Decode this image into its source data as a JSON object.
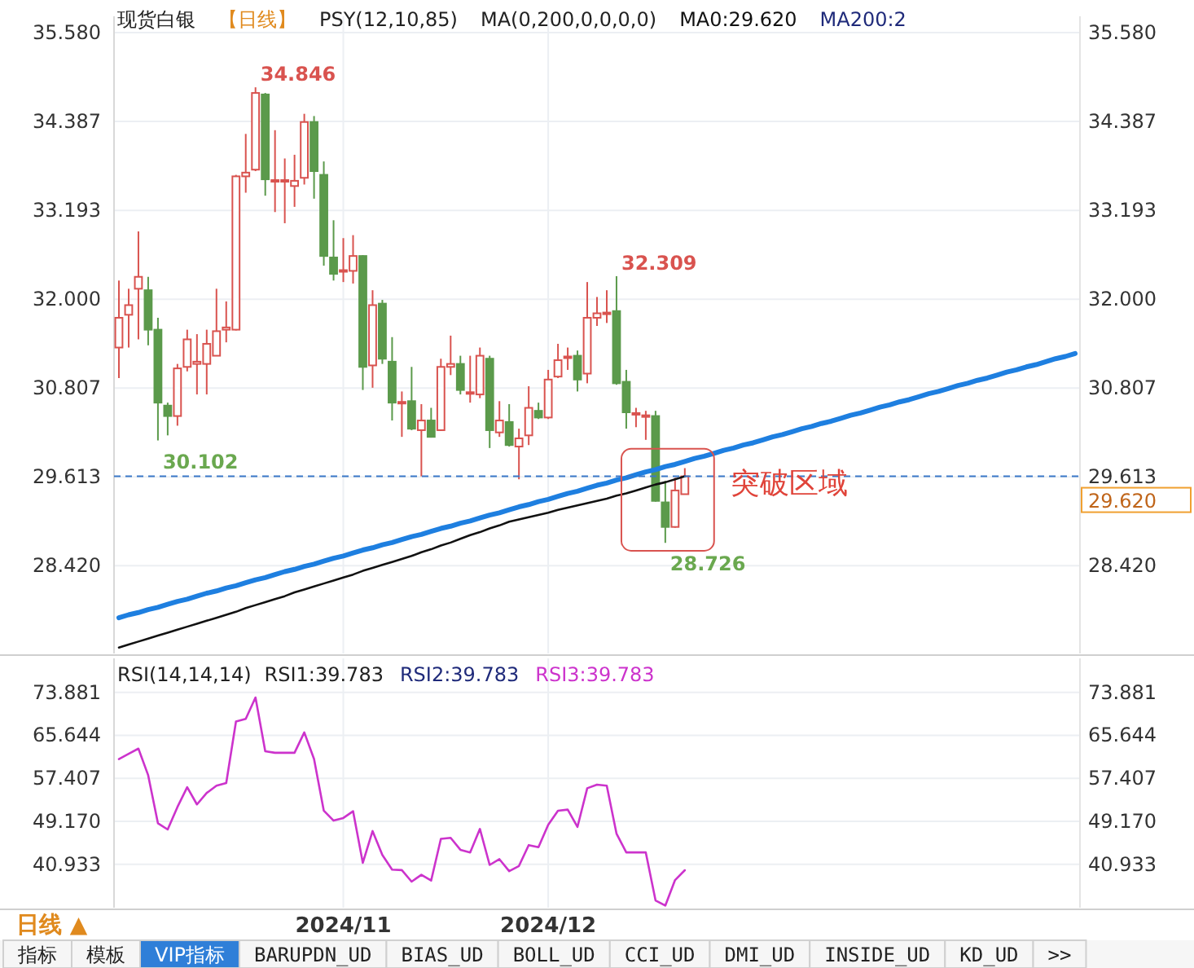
{
  "chart_data": [
    {
      "type": "candlestick",
      "title": "现货白银",
      "subtitle": "【日线】",
      "annotations": [
        "PSY(12,10,85)",
        "MA(0,200,0,0,0,0)",
        "MA200:2",
        "突破区域",
        "34.846",
        "30.102",
        "32.309",
        "28.726"
      ],
      "categories": [
        null,
        null,
        null,
        null,
        null,
        null,
        null,
        null,
        null,
        null,
        null,
        null,
        null,
        null,
        null,
        null,
        null,
        null,
        null,
        null,
        null,
        null,
        null,
        "2024/11",
        null,
        null,
        null,
        null,
        null,
        null,
        null,
        null,
        null,
        null,
        null,
        null,
        null,
        null,
        null,
        null,
        null,
        null,
        null,
        null,
        "2024/12",
        null,
        null,
        null,
        null,
        null,
        null,
        null,
        null,
        null,
        null,
        null,
        null,
        null,
        null,
        null,
        null,
        null,
        null,
        null,
        null,
        null,
        null,
        null,
        null,
        null,
        null,
        null,
        null,
        null,
        null,
        null,
        null,
        null,
        null,
        null,
        null,
        null,
        null,
        null,
        null,
        null,
        null,
        null,
        null,
        null,
        null,
        null,
        null,
        null,
        null,
        null,
        null,
        null,
        null
      ],
      "ohlc": [
        [
          31.35,
          32.25,
          30.94,
          31.75
        ],
        [
          31.79,
          32.14,
          31.35,
          31.92
        ],
        [
          32.14,
          32.91,
          31.46,
          32.3
        ],
        [
          32.12,
          32.3,
          31.38,
          31.59
        ],
        [
          31.59,
          31.75,
          30.102,
          30.61
        ],
        [
          30.57,
          30.61,
          30.17,
          30.43
        ],
        [
          30.43,
          31.13,
          30.3,
          31.07
        ],
        [
          31.09,
          31.59,
          31.03,
          31.46
        ],
        [
          31.13,
          31.53,
          30.72,
          31.16
        ],
        [
          31.13,
          31.59,
          30.72,
          31.4
        ],
        [
          31.24,
          32.14,
          31.24,
          31.57
        ],
        [
          31.59,
          31.97,
          31.42,
          31.62
        ],
        [
          31.59,
          33.67,
          31.58,
          33.65
        ],
        [
          33.65,
          34.22,
          33.43,
          33.7
        ],
        [
          33.74,
          34.846,
          33.72,
          34.77
        ],
        [
          34.75,
          34.77,
          33.39,
          33.61
        ],
        [
          33.59,
          34.27,
          33.17,
          33.6
        ],
        [
          33.59,
          33.89,
          33.02,
          33.6
        ],
        [
          33.52,
          33.94,
          33.24,
          33.59
        ],
        [
          33.63,
          34.49,
          33.54,
          34.38
        ],
        [
          34.38,
          34.46,
          33.35,
          33.72
        ],
        [
          33.67,
          33.85,
          32.45,
          32.58
        ],
        [
          32.56,
          33.06,
          32.25,
          32.34
        ],
        [
          32.38,
          32.82,
          32.23,
          32.39
        ],
        [
          32.38,
          32.86,
          32.21,
          32.58
        ],
        [
          32.58,
          32.59,
          30.78,
          31.09
        ],
        [
          31.11,
          32.12,
          30.81,
          31.92
        ],
        [
          31.94,
          31.99,
          31.13,
          31.2
        ],
        [
          31.16,
          31.49,
          30.37,
          30.61
        ],
        [
          30.61,
          30.76,
          30.15,
          30.62
        ],
        [
          30.63,
          31.09,
          30.24,
          30.26
        ],
        [
          30.24,
          30.59,
          29.62,
          30.37
        ],
        [
          30.37,
          30.54,
          30.14,
          30.15
        ],
        [
          30.24,
          31.2,
          30.23,
          31.09
        ],
        [
          31.09,
          31.51,
          30.98,
          31.13
        ],
        [
          31.13,
          31.24,
          30.72,
          30.78
        ],
        [
          30.74,
          31.24,
          30.61,
          30.75
        ],
        [
          30.72,
          31.35,
          30.67,
          31.24
        ],
        [
          31.2,
          31.24,
          30.0,
          30.24
        ],
        [
          30.21,
          30.63,
          30.15,
          30.37
        ],
        [
          30.35,
          30.59,
          30.02,
          30.04
        ],
        [
          30.02,
          30.26,
          29.58,
          30.13
        ],
        [
          30.17,
          30.83,
          30.04,
          30.54
        ],
        [
          30.5,
          30.61,
          30.39,
          30.41
        ],
        [
          30.41,
          31.05,
          30.39,
          30.92
        ],
        [
          30.96,
          31.4,
          30.94,
          31.18
        ],
        [
          31.22,
          31.35,
          31.05,
          31.23
        ],
        [
          31.24,
          31.31,
          30.76,
          30.92
        ],
        [
          31.0,
          32.23,
          30.87,
          31.75
        ],
        [
          31.75,
          32.03,
          31.64,
          31.81
        ],
        [
          31.81,
          32.12,
          31.68,
          31.82
        ],
        [
          31.84,
          32.309,
          30.85,
          30.87
        ],
        [
          30.89,
          31.05,
          30.26,
          30.48
        ],
        [
          30.46,
          30.54,
          30.28,
          30.47
        ],
        [
          30.43,
          30.5,
          30.11,
          30.44
        ],
        [
          30.43,
          30.5,
          29.28,
          29.29
        ],
        [
          29.27,
          29.56,
          28.726,
          28.94
        ],
        [
          28.94,
          29.6,
          28.93,
          29.43
        ],
        [
          29.38,
          29.73,
          29.38,
          29.62
        ],
        null,
        null,
        null,
        null,
        null,
        null,
        null,
        null,
        null,
        null,
        null,
        null,
        null,
        null,
        null,
        null,
        null,
        null,
        null,
        null,
        null,
        null,
        null,
        null,
        null,
        null,
        null,
        null,
        null,
        null,
        null,
        null,
        null,
        null,
        null,
        null,
        null,
        null,
        null,
        null
      ],
      "colors": [
        "#d9534f",
        "#d9534f",
        "#d9534f",
        "#5b9a4b",
        "#5b9a4b",
        "#5b9a4b",
        "#d9534f",
        "#d9534f",
        "#d9534f",
        "#d9534f",
        "#d9534f",
        "#d9534f",
        "#d9534f",
        "#d9534f",
        "#d9534f",
        "#5b9a4b",
        "#d9534f",
        "#d9534f",
        "#d9534f",
        "#d9534f",
        "#5b9a4b",
        "#5b9a4b",
        "#5b9a4b",
        "#d9534f",
        "#d9534f",
        "#5b9a4b",
        "#d9534f",
        "#5b9a4b",
        "#5b9a4b",
        "#d9534f",
        "#5b9a4b",
        "#d9534f",
        "#5b9a4b",
        "#d9534f",
        "#d9534f",
        "#5b9a4b",
        "#d9534f",
        "#d9534f",
        "#5b9a4b",
        "#d9534f",
        "#5b9a4b",
        "#d9534f",
        "#d9534f",
        "#5b9a4b",
        "#d9534f",
        "#d9534f",
        "#d9534f",
        "#5b9a4b",
        "#d9534f",
        "#d9534f",
        "#d9534f",
        "#5b9a4b",
        "#5b9a4b",
        "#d9534f",
        "#d9534f",
        "#5b9a4b",
        "#5b9a4b",
        "#d9534f",
        "#d9534f",
        null,
        null,
        null,
        null,
        null,
        null,
        null,
        null,
        null,
        null,
        null,
        null,
        null,
        null,
        null,
        null,
        null,
        null,
        null,
        null,
        null,
        null,
        null,
        null,
        null,
        null,
        null,
        null,
        null,
        null,
        null,
        null,
        null,
        null,
        null,
        null,
        null,
        null,
        null,
        null
      ],
      "series": [
        {
          "name": "MA0:29.620",
          "type": "line",
          "color": "#111111",
          "values": [
            27.32,
            27.36,
            27.4,
            27.44,
            27.48,
            27.52,
            27.56,
            27.6,
            27.64,
            27.68,
            27.72,
            27.76,
            27.8,
            27.85,
            27.89,
            27.93,
            27.97,
            28.01,
            28.06,
            28.1,
            28.14,
            28.18,
            28.22,
            28.26,
            28.3,
            28.35,
            28.39,
            28.43,
            28.47,
            28.51,
            28.55,
            28.6,
            28.64,
            28.69,
            28.73,
            28.78,
            28.83,
            28.87,
            28.92,
            28.96,
            29.01,
            29.04,
            29.07,
            29.1,
            29.13,
            29.17,
            29.2,
            29.23,
            29.26,
            29.29,
            29.32,
            29.36,
            29.39,
            29.43,
            29.47,
            29.51,
            29.54,
            29.58,
            29.62,
            null,
            null,
            null,
            null,
            null,
            null,
            null,
            null,
            null,
            null,
            null,
            null,
            null,
            null,
            null,
            null,
            null,
            null,
            null,
            null,
            null,
            null,
            null,
            null,
            null,
            null,
            null,
            null,
            null,
            null,
            null,
            null,
            null,
            null,
            null,
            null,
            null,
            null,
            null,
            null
          ]
        },
        {
          "type": "line",
          "color": "#1e7fe0",
          "values": [
            27.72,
            27.76,
            27.79,
            27.83,
            27.86,
            27.9,
            27.94,
            27.97,
            28.01,
            28.05,
            28.08,
            28.12,
            28.15,
            28.19,
            28.23,
            28.26,
            28.3,
            28.34,
            28.37,
            28.41,
            28.44,
            28.48,
            28.52,
            28.55,
            28.59,
            28.63,
            28.66,
            28.7,
            28.73,
            28.77,
            28.81,
            28.84,
            28.88,
            28.92,
            28.95,
            28.99,
            29.02,
            29.06,
            29.1,
            29.13,
            29.17,
            29.21,
            29.24,
            29.28,
            29.31,
            29.35,
            29.39,
            29.42,
            29.46,
            29.5,
            29.53,
            29.57,
            29.6,
            29.64,
            29.68,
            29.71,
            29.75,
            29.78,
            29.82,
            29.86,
            29.89,
            29.93,
            29.97,
            30.0,
            30.04,
            30.07,
            30.11,
            30.15,
            30.18,
            30.22,
            30.26,
            30.29,
            30.33,
            30.36,
            30.4,
            30.44,
            30.47,
            30.51,
            30.55,
            30.58,
            30.62,
            30.65,
            30.69,
            30.73,
            30.76,
            30.8,
            30.84,
            30.87,
            30.91,
            30.94,
            30.98,
            31.02,
            31.05,
            31.09,
            31.12,
            31.16,
            31.2,
            31.23,
            31.27
          ]
        }
      ],
      "ylim": [
        27.24,
        35.8
      ],
      "yticks": [
        {
          "value": 28.42,
          "label": "28.420"
        },
        29.613,
        30.807,
        {
          "value": 32,
          "label": "32.000"
        },
        33.193,
        34.387,
        {
          "value": 35.58,
          "label": "35.580"
        }
      ],
      "y2lim": [
        27.24,
        35.8
      ],
      "y2ticks": [
        {
          "value": 28.42,
          "label": "28.420"
        },
        29.613,
        30.807,
        {
          "value": 32,
          "label": "32.000"
        },
        33.193,
        34.387,
        {
          "value": 35.58,
          "label": "35.580"
        }
      ],
      "ref_lines": [
        {
          "axis": "y",
          "value": 29.62,
          "label": "29.620",
          "color": "#3a78c8",
          "line_style": "dashed"
        }
      ],
      "grid": true,
      "tick_labels": "y"
    },
    {
      "type": "line",
      "title": "RSI(14,14,14)",
      "categories": [
        null,
        null,
        null,
        null,
        null,
        null,
        null,
        null,
        null,
        null,
        null,
        null,
        null,
        null,
        null,
        null,
        null,
        null,
        null,
        null,
        null,
        null,
        null,
        "2024/11",
        null,
        null,
        null,
        null,
        null,
        null,
        null,
        null,
        null,
        null,
        null,
        null,
        null,
        null,
        null,
        null,
        null,
        null,
        null,
        null,
        "2024/12",
        null,
        null,
        null,
        null,
        null,
        null,
        null,
        null,
        null,
        null,
        null,
        null,
        null,
        null,
        null,
        null,
        null,
        null,
        null,
        null,
        null,
        null,
        null,
        null,
        null,
        null,
        null,
        null,
        null,
        null,
        null,
        null,
        null,
        null,
        null,
        null,
        null,
        null,
        null,
        null,
        null,
        null,
        null,
        null,
        null,
        null,
        null,
        null,
        null,
        null,
        null,
        null,
        null,
        null
      ],
      "series": [
        {
          "name": "RSI1:39.783",
          "color": "#222222",
          "values": [
            null,
            null,
            null,
            null,
            null,
            null,
            null,
            null,
            null,
            null,
            null,
            null,
            null,
            null,
            null,
            null,
            null,
            null,
            null,
            null,
            null,
            null,
            null,
            null,
            null,
            null,
            null,
            null,
            null,
            null,
            null,
            null,
            null,
            null,
            null,
            null,
            null,
            null,
            null,
            null,
            null,
            null,
            null,
            null,
            null,
            null,
            null,
            null,
            null,
            null,
            null,
            null,
            null,
            null,
            null,
            null,
            null,
            null,
            null,
            null,
            null,
            null,
            null,
            null,
            null,
            null,
            null,
            null,
            null,
            null,
            null,
            null,
            null,
            null,
            null,
            null,
            null,
            null,
            null,
            null,
            null,
            null,
            null,
            null,
            null,
            null,
            null,
            null,
            null,
            null,
            null,
            null,
            null,
            null,
            null,
            null,
            null,
            null,
            null
          ]
        },
        {
          "name": "RSI2:39.783",
          "color": "#1f2a7a",
          "values": [
            null,
            null,
            null,
            null,
            null,
            null,
            null,
            null,
            null,
            null,
            null,
            null,
            null,
            null,
            null,
            null,
            null,
            null,
            null,
            null,
            null,
            null,
            null,
            null,
            null,
            null,
            null,
            null,
            null,
            null,
            null,
            null,
            null,
            null,
            null,
            null,
            null,
            null,
            null,
            null,
            null,
            null,
            null,
            null,
            null,
            null,
            null,
            null,
            null,
            null,
            null,
            null,
            null,
            null,
            null,
            null,
            null,
            null,
            null,
            null,
            null,
            null,
            null,
            null,
            null,
            null,
            null,
            null,
            null,
            null,
            null,
            null,
            null,
            null,
            null,
            null,
            null,
            null,
            null,
            null,
            null,
            null,
            null,
            null,
            null,
            null,
            null,
            null,
            null,
            null,
            null,
            null,
            null,
            null,
            null,
            null,
            null,
            null,
            null
          ]
        },
        {
          "name": "RSI3:39.783",
          "color": "#cc33cc",
          "values": [
            61.1,
            62.1,
            63.1,
            58.0,
            48.8,
            47.6,
            51.9,
            55.7,
            52.4,
            54.6,
            56.0,
            56.5,
            68.3,
            68.8,
            72.9,
            62.6,
            62.3,
            62.3,
            62.3,
            66.2,
            61.1,
            51.2,
            49.3,
            49.8,
            51.1,
            41.2,
            47.3,
            42.7,
            39.9,
            39.8,
            37.6,
            38.9,
            37.8,
            45.8,
            46.0,
            43.7,
            43.2,
            47.7,
            40.8,
            41.9,
            39.6,
            40.6,
            44.6,
            44.2,
            48.5,
            51.2,
            51.4,
            48.1,
            55.5,
            56.2,
            56.0,
            46.8,
            43.2,
            43.2,
            43.2,
            34.0,
            33.0,
            37.9,
            39.783,
            null,
            null,
            null,
            null,
            null,
            null,
            null,
            null,
            null,
            null,
            null,
            null,
            null,
            null,
            null,
            null,
            null,
            null,
            null,
            null,
            null,
            null,
            null,
            null,
            null,
            null,
            null,
            null,
            null,
            null,
            null,
            null,
            null,
            null,
            null,
            null,
            null,
            null,
            null,
            null
          ]
        }
      ],
      "ylim": [
        32.6,
        80.4
      ],
      "yticks": [
        40.933,
        {
          "value": 49.17,
          "label": "49.170"
        },
        57.407,
        65.644,
        73.881
      ],
      "y2lim": [
        32.6,
        80.4
      ],
      "y2ticks": [
        40.933,
        {
          "value": 49.17,
          "label": "49.170"
        },
        57.407,
        65.644,
        73.881
      ],
      "grid": true,
      "legend": "top left",
      "annotations": [
        "日线 ▲",
        "指标",
        "模板",
        "VIP指标",
        "BARUPDN_UD",
        "BIAS_UD",
        "BOLL_UD",
        "CCI_UD",
        "DMI_UD",
        "INSIDE_UD",
        "KD_UD",
        ">>"
      ]
    }
  ]
}
